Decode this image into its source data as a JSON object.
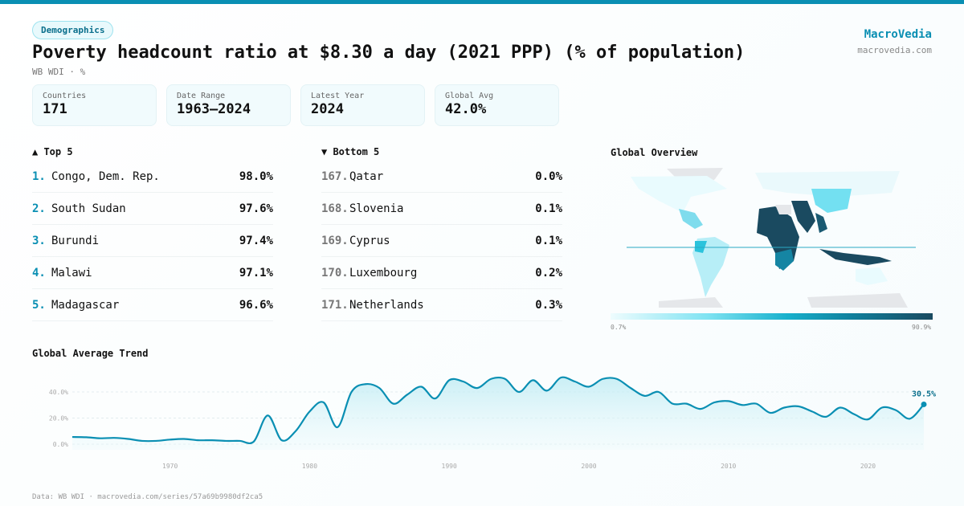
{
  "header": {
    "tag": "Demographics",
    "title": "Poverty headcount ratio at $8.30 a day (2021 PPP) (% of population)",
    "subtitle": "WB WDI · %",
    "brand": "MacroVedia",
    "brand_url": "macrovedia.com"
  },
  "stats": [
    {
      "label": "Countries",
      "value": "171"
    },
    {
      "label": "Date Range",
      "value": "1963–2024"
    },
    {
      "label": "Latest Year",
      "value": "2024"
    },
    {
      "label": "Global Avg",
      "value": "42.0%"
    }
  ],
  "top": {
    "title": "▲ Top 5",
    "items": [
      {
        "rank": "1.",
        "name": "Congo, Dem. Rep.",
        "value": "98.0%"
      },
      {
        "rank": "2.",
        "name": "South Sudan",
        "value": "97.6%"
      },
      {
        "rank": "3.",
        "name": "Burundi",
        "value": "97.4%"
      },
      {
        "rank": "4.",
        "name": "Malawi",
        "value": "97.1%"
      },
      {
        "rank": "5.",
        "name": "Madagascar",
        "value": "96.6%"
      }
    ]
  },
  "bottom": {
    "title": "▼ Bottom 5",
    "items": [
      {
        "rank": "167.",
        "name": "Qatar",
        "value": "0.0%"
      },
      {
        "rank": "168.",
        "name": "Slovenia",
        "value": "0.1%"
      },
      {
        "rank": "169.",
        "name": "Cyprus",
        "value": "0.1%"
      },
      {
        "rank": "170.",
        "name": "Luxembourg",
        "value": "0.2%"
      },
      {
        "rank": "171.",
        "name": "Netherlands",
        "value": "0.3%"
      }
    ]
  },
  "map": {
    "title": "Global Overview",
    "min_label": "0.7%",
    "max_label": "90.9%"
  },
  "footer": "Data: WB WDI · macrovedia.com/series/57a69b9980df2ca5",
  "chart_data": {
    "type": "area",
    "title": "Global Average Trend",
    "xlabel": "",
    "ylabel": "",
    "xlim": [
      1963,
      2024
    ],
    "ylim": [
      -3,
      52
    ],
    "x_ticks": [
      1970,
      1980,
      1990,
      2000,
      2010,
      2020
    ],
    "y_ticks": [
      {
        "v": 0,
        "label": "0.0%"
      },
      {
        "v": 20,
        "label": "20.0%"
      },
      {
        "v": 40,
        "label": "40.0%"
      }
    ],
    "last_label": "30.5%",
    "x": [
      1963,
      1964,
      1965,
      1966,
      1967,
      1968,
      1969,
      1970,
      1971,
      1972,
      1973,
      1974,
      1975,
      1976,
      1977,
      1978,
      1979,
      1980,
      1981,
      1982,
      1983,
      1984,
      1985,
      1986,
      1987,
      1988,
      1989,
      1990,
      1991,
      1992,
      1993,
      1994,
      1995,
      1996,
      1997,
      1998,
      1999,
      2000,
      2001,
      2002,
      2003,
      2004,
      2005,
      2006,
      2007,
      2008,
      2009,
      2010,
      2011,
      2012,
      2013,
      2014,
      2015,
      2016,
      2017,
      2018,
      2019,
      2020,
      2021,
      2022,
      2023,
      2024
    ],
    "values": [
      5.5,
      5.3,
      4.5,
      4.8,
      4,
      2.5,
      2.5,
      3.5,
      4,
      3,
      3,
      2.5,
      2.5,
      2,
      22,
      3,
      10,
      25,
      32,
      13,
      40,
      46,
      43,
      31,
      38,
      44,
      35,
      49,
      48,
      43,
      50,
      50,
      40,
      49,
      41,
      51,
      48,
      44,
      50,
      50,
      43,
      37,
      40,
      31,
      31,
      27,
      32,
      33,
      30,
      31,
      24,
      28,
      29,
      25,
      21,
      28,
      23,
      19,
      28,
      26,
      19.5,
      30.5
    ]
  }
}
